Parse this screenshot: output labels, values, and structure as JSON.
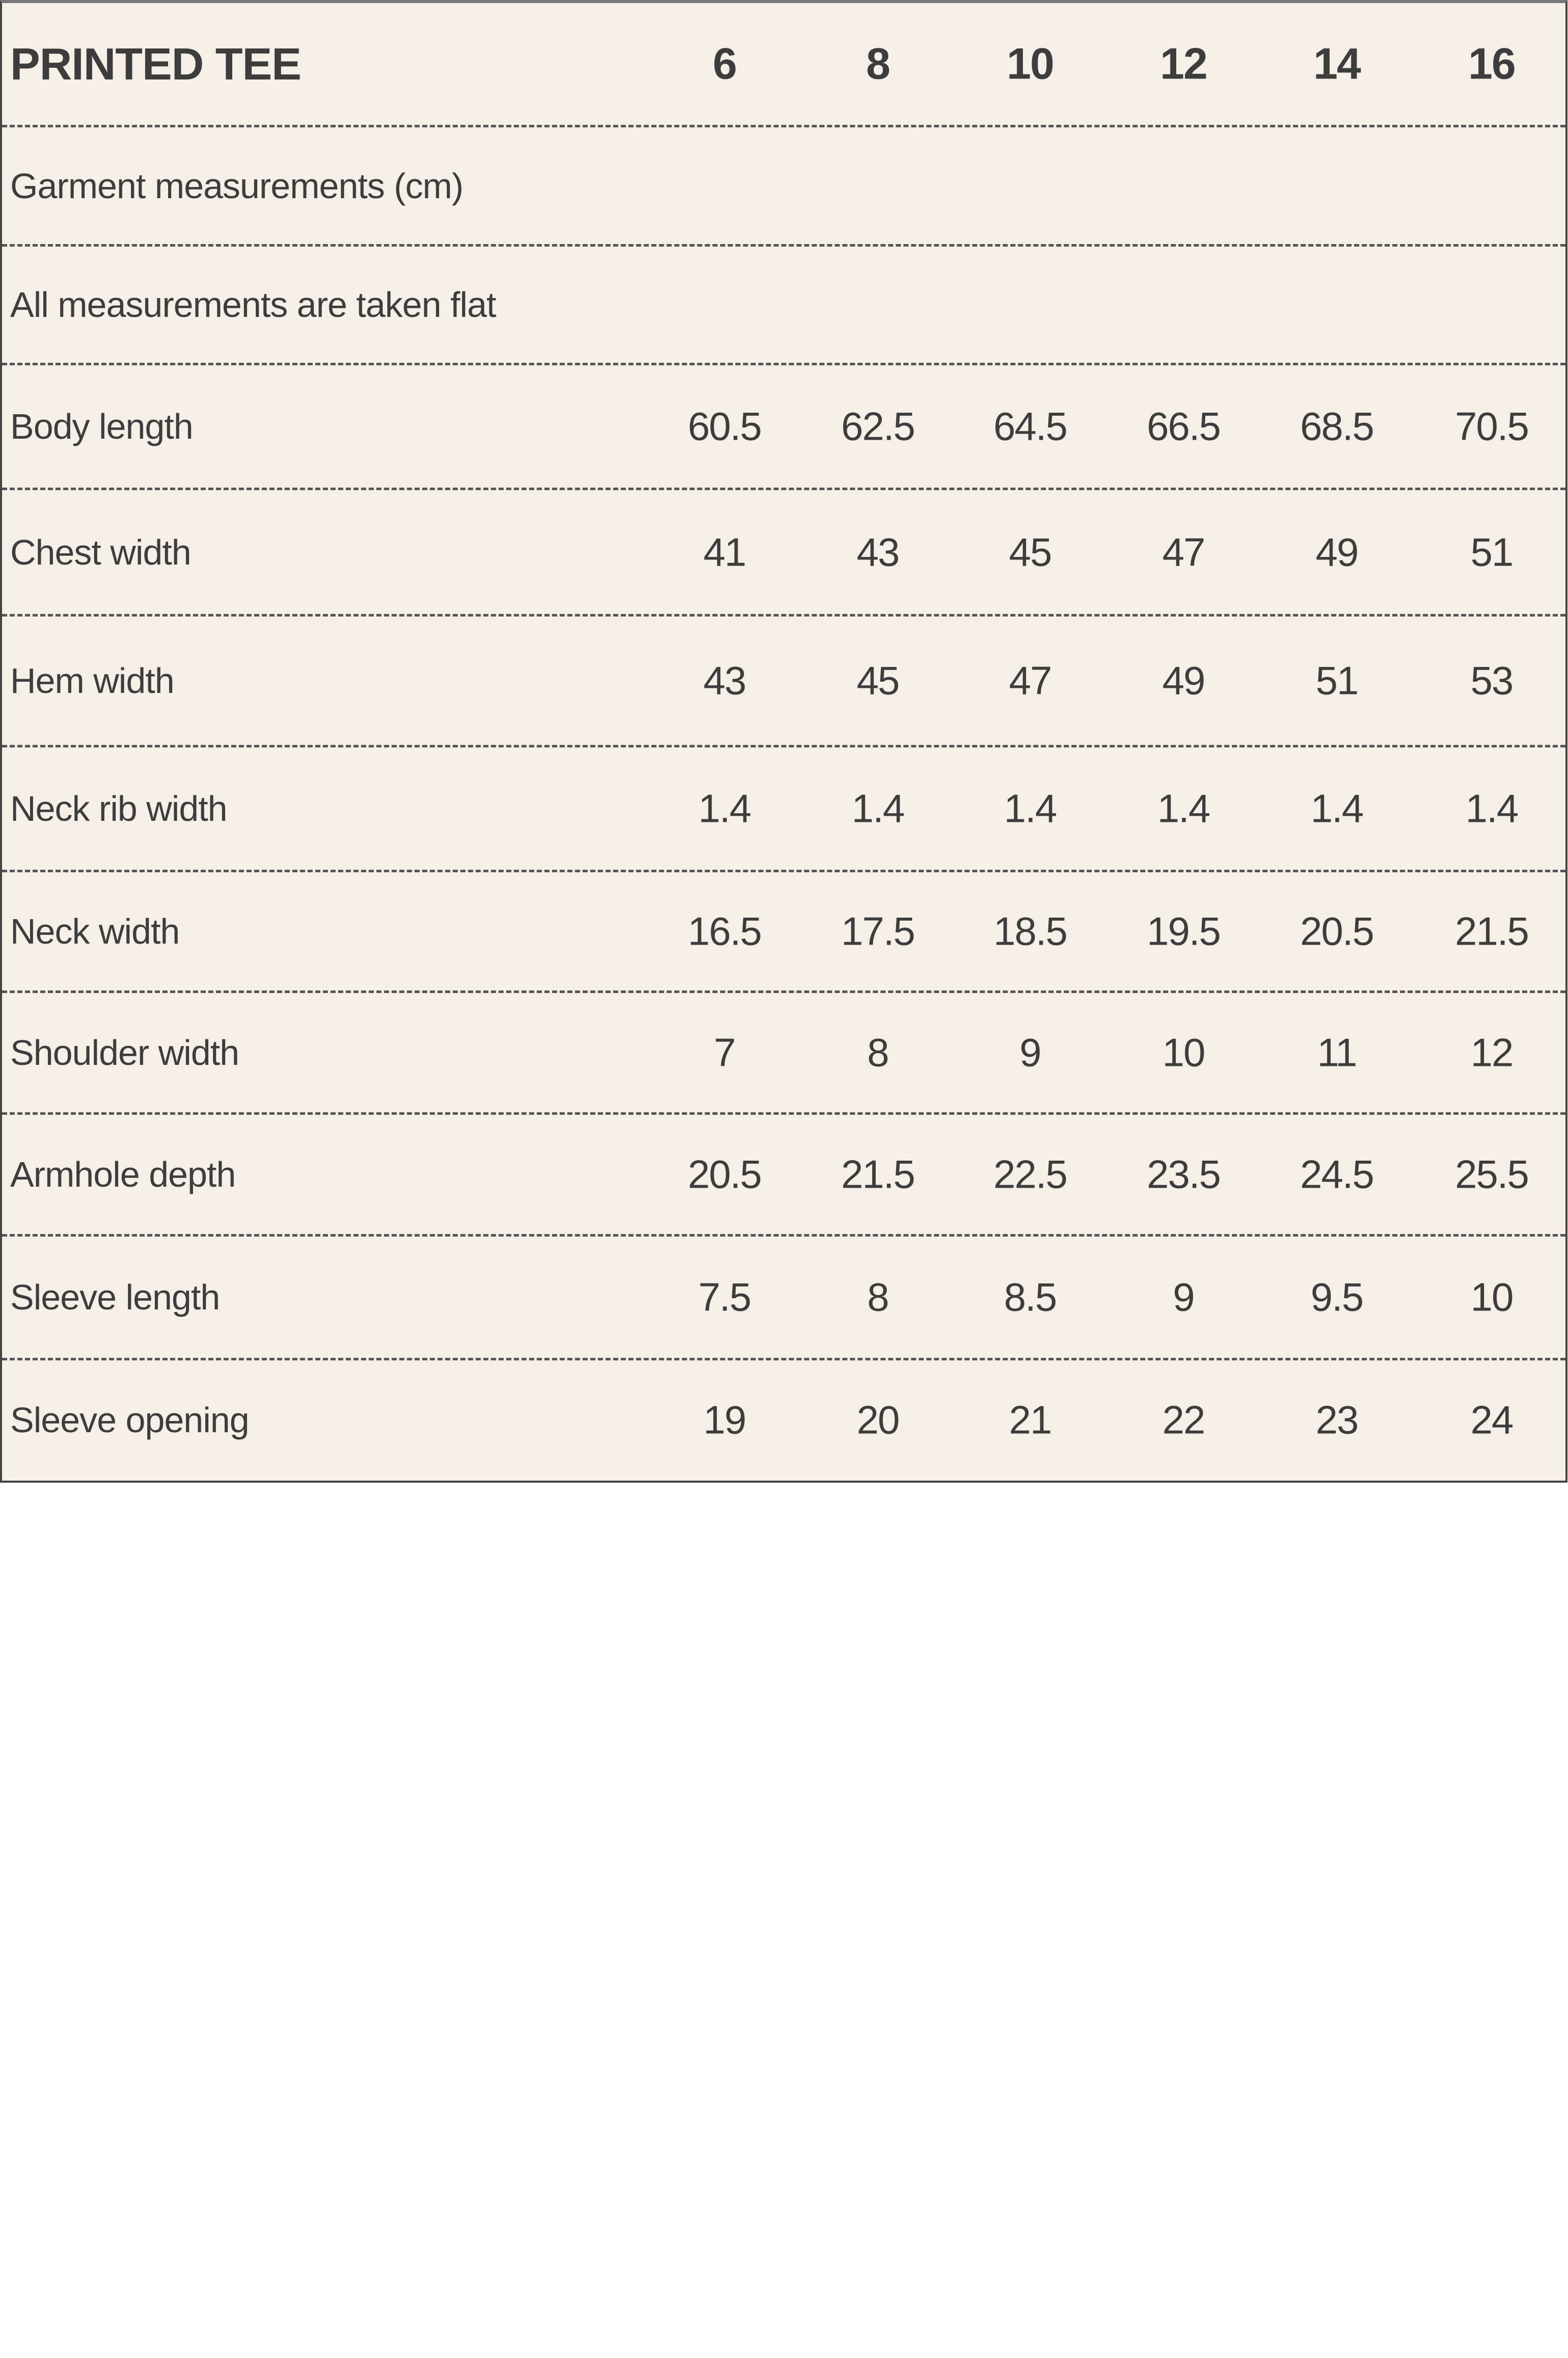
{
  "table": {
    "title": "PRINTED TEE",
    "sizes": [
      "6",
      "8",
      "10",
      "12",
      "14",
      "16"
    ],
    "notes": [
      "Garment measurements (cm)",
      "All measurements are taken flat"
    ],
    "rows": [
      {
        "label": "Body length",
        "values": [
          "60.5",
          "62.5",
          "64.5",
          "66.5",
          "68.5",
          "70.5"
        ]
      },
      {
        "label": "Chest width",
        "values": [
          "41",
          "43",
          "45",
          "47",
          "49",
          "51"
        ]
      },
      {
        "label": "Hem width",
        "values": [
          "43",
          "45",
          "47",
          "49",
          "51",
          "53"
        ]
      },
      {
        "label": "Neck rib width",
        "values": [
          "1.4",
          "1.4",
          "1.4",
          "1.4",
          "1.4",
          "1.4"
        ]
      },
      {
        "label": "Neck width",
        "values": [
          "16.5",
          "17.5",
          "18.5",
          "19.5",
          "20.5",
          "21.5"
        ]
      },
      {
        "label": "Shoulder width",
        "values": [
          "7",
          "8",
          "9",
          "10",
          "11",
          "12"
        ]
      },
      {
        "label": "Armhole depth",
        "values": [
          "20.5",
          "21.5",
          "22.5",
          "23.5",
          "24.5",
          "25.5"
        ]
      },
      {
        "label": "Sleeve length",
        "values": [
          "7.5",
          "8",
          "8.5",
          "9",
          "9.5",
          "10"
        ]
      },
      {
        "label": "Sleeve opening",
        "values": [
          "19",
          "20",
          "21",
          "22",
          "23",
          "24"
        ]
      }
    ]
  }
}
